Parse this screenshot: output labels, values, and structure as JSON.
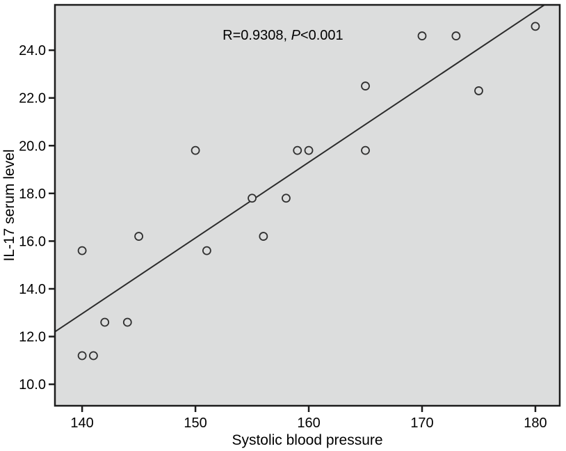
{
  "figure": {
    "kind": "scatter-plot-with-regression-line"
  },
  "chart_data": {
    "type": "scatter",
    "title": "",
    "xlabel": "Systolic blood pressure",
    "ylabel": "IL-17 serum level",
    "xlim": [
      137.6,
      182.15
    ],
    "ylim": [
      9.1,
      25.9
    ],
    "xticks": [
      140,
      150,
      160,
      170,
      180
    ],
    "yticks": [
      10.0,
      12.0,
      14.0,
      16.0,
      18.0,
      20.0,
      22.0,
      24.0
    ],
    "grid": false,
    "legend": "none",
    "annotation": {
      "text": "R=0.9308, P<0.001",
      "prefix": "R=0.9308, ",
      "italic": "P",
      "suffix": "<0.001",
      "x": 152.4,
      "y": 24.44
    },
    "points": [
      [
        140,
        15.6
      ],
      [
        140,
        11.2
      ],
      [
        141,
        11.2
      ],
      [
        142,
        12.6
      ],
      [
        144,
        12.6
      ],
      [
        145,
        16.2
      ],
      [
        150,
        19.8
      ],
      [
        151,
        15.6
      ],
      [
        155,
        17.8
      ],
      [
        156,
        16.2
      ],
      [
        158,
        17.8
      ],
      [
        159,
        19.8
      ],
      [
        160,
        19.8
      ],
      [
        165,
        22.5
      ],
      [
        165,
        19.8
      ],
      [
        170,
        24.6
      ],
      [
        173,
        24.6
      ],
      [
        175,
        22.3
      ],
      [
        180,
        25.0
      ]
    ],
    "regression_line": {
      "x1": 137.6,
      "y1": 12.2,
      "x2": 180.8,
      "y2": 25.9
    },
    "marker": {
      "shape": "open-circle",
      "radius": 5.5,
      "stroke": "#2f2f2f",
      "stroke_width": 1.8
    },
    "colors": {
      "page_background": "#ffffff",
      "plot_background": "#dcdddd",
      "frame": "#1c1c1c",
      "line": "#2b2b2b",
      "text": "#000000"
    }
  }
}
